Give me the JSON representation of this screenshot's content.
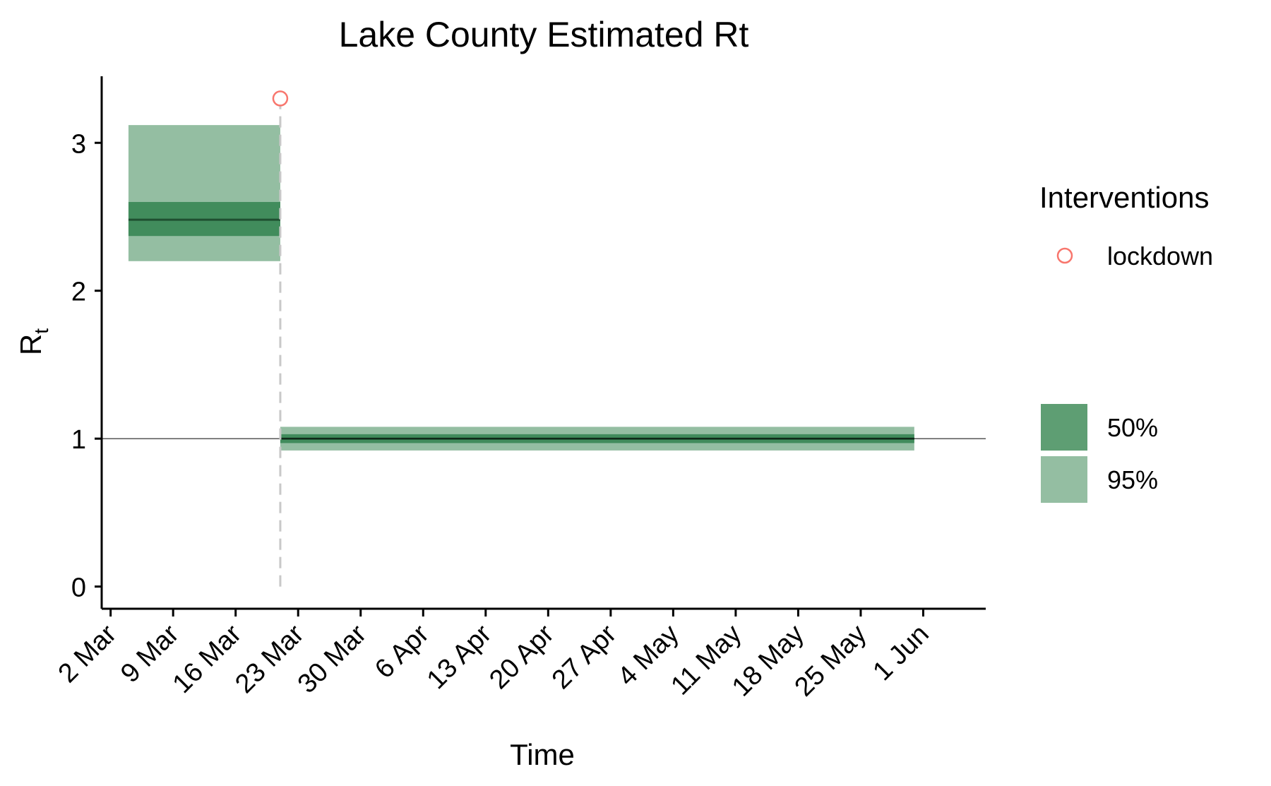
{
  "chart_data": {
    "type": "area",
    "title": "Lake County Estimated Rt",
    "xlabel": "Time",
    "ylabel": "R",
    "ylabel_subscript": "t",
    "x_type": "date",
    "xlim": [
      "2020-03-01",
      "2020-06-08"
    ],
    "ylim": [
      -0.15,
      3.45
    ],
    "y_ticks": [
      0,
      1,
      2,
      3
    ],
    "x_ticks": [
      {
        "date": "2020-03-02",
        "label": "2 Mar"
      },
      {
        "date": "2020-03-09",
        "label": "9 Mar"
      },
      {
        "date": "2020-03-16",
        "label": "16 Mar"
      },
      {
        "date": "2020-03-23",
        "label": "23 Mar"
      },
      {
        "date": "2020-03-30",
        "label": "30 Mar"
      },
      {
        "date": "2020-04-06",
        "label": "6 Apr"
      },
      {
        "date": "2020-04-13",
        "label": "13 Apr"
      },
      {
        "date": "2020-04-20",
        "label": "20 Apr"
      },
      {
        "date": "2020-04-27",
        "label": "27 Apr"
      },
      {
        "date": "2020-05-04",
        "label": "4 May"
      },
      {
        "date": "2020-05-11",
        "label": "11 May"
      },
      {
        "date": "2020-05-18",
        "label": "18 May"
      },
      {
        "date": "2020-05-25",
        "label": "25 May"
      },
      {
        "date": "2020-06-01",
        "label": "1 Jun"
      }
    ],
    "reference_line": {
      "y": 1,
      "color": "#000000"
    },
    "series": [
      {
        "segments": [
          {
            "x_start": "2020-03-04",
            "x_end": "2020-03-21",
            "median": 2.48,
            "ci50": [
              2.37,
              2.6
            ],
            "ci95": [
              2.2,
              3.12
            ]
          },
          {
            "x_start": "2020-03-21",
            "x_end": "2020-05-31",
            "median": 1.0,
            "ci50": [
              0.97,
              1.03
            ],
            "ci95": [
              0.92,
              1.08
            ]
          }
        ]
      }
    ],
    "interventions": [
      {
        "name": "lockdown",
        "date": "2020-03-21",
        "marker_y": 3.3,
        "color": "#f8766d"
      }
    ],
    "legend": {
      "position": "right",
      "interventions_title": "Interventions",
      "intervention_items": [
        {
          "label": "lockdown",
          "color": "#f8766d"
        }
      ],
      "band_items": [
        {
          "label": "50%",
          "color": "#5e9e73"
        },
        {
          "label": "95%",
          "color": "#94bea2"
        }
      ]
    },
    "colors": {
      "band50": "#418c5c",
      "band95": "#94bea2",
      "median": "#1f4f30",
      "lockdown_line": "#c8c8c8",
      "axis": "#000000"
    },
    "grid": false
  }
}
